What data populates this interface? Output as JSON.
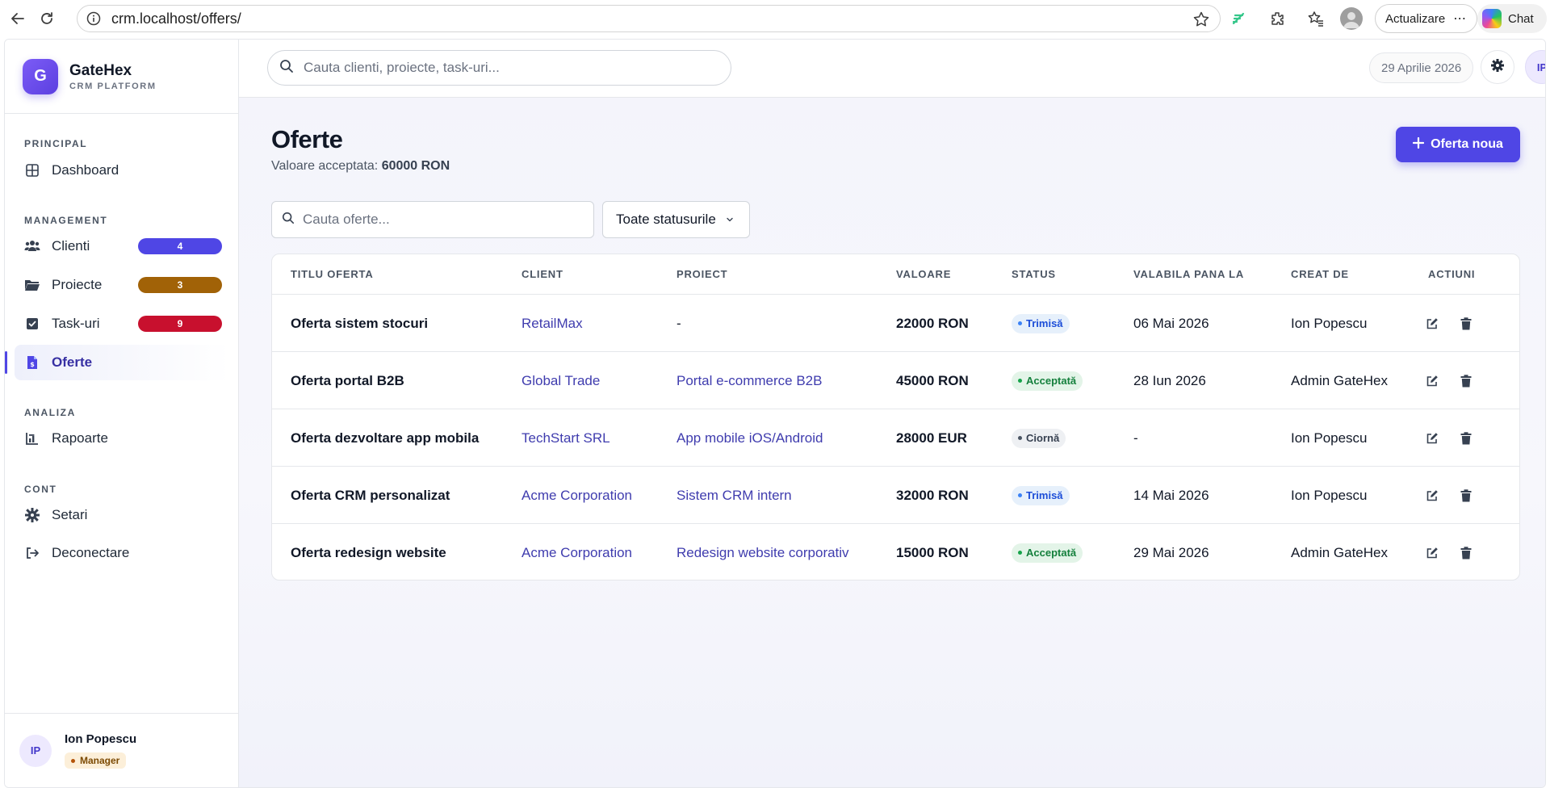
{
  "browser": {
    "url": "crm.localhost/offers/",
    "update_label": "Actualizare",
    "chat_label": "Chat"
  },
  "brand": {
    "logo_letter": "G",
    "name": "GateHex",
    "subtitle": "CRM PLATFORM"
  },
  "sidebar": {
    "sections": [
      {
        "title": "PRINCIPAL",
        "items": [
          {
            "label": "Dashboard",
            "icon": "grid-icon"
          }
        ]
      },
      {
        "title": "MANAGEMENT",
        "items": [
          {
            "label": "Clienti",
            "icon": "users-icon",
            "badge": "4",
            "badge_color": "#4f46e5"
          },
          {
            "label": "Proiecte",
            "icon": "folder-icon",
            "badge": "3",
            "badge_color": "#a16207"
          },
          {
            "label": "Task-uri",
            "icon": "checkbox-icon",
            "badge": "9",
            "badge_color": "#c8102e"
          },
          {
            "label": "Oferte",
            "icon": "invoice-icon",
            "active": true
          }
        ]
      },
      {
        "title": "ANALIZA",
        "items": [
          {
            "label": "Rapoarte",
            "icon": "chart-icon"
          }
        ]
      },
      {
        "title": "CONT",
        "items": [
          {
            "label": "Setari",
            "icon": "gear-icon"
          },
          {
            "label": "Deconectare",
            "icon": "logout-icon"
          }
        ]
      }
    ],
    "user": {
      "initials": "IP",
      "name": "Ion Popescu",
      "role": "Manager"
    }
  },
  "topbar": {
    "search_placeholder": "Cauta clienti, proiecte, task-uri...",
    "date": "29 Aprilie 2026",
    "avatar_initials": "IP"
  },
  "page": {
    "title": "Oferte",
    "accepted_label": "Valoare acceptata:",
    "accepted_value": "60000 RON",
    "new_button": "Oferta noua",
    "filter_placeholder": "Cauta oferte...",
    "status_filter": "Toate statusurile"
  },
  "table": {
    "columns": [
      "TITLU OFERTA",
      "CLIENT",
      "PROIECT",
      "VALOARE",
      "STATUS",
      "VALABILA PANA LA",
      "CREAT DE",
      "ACTIUNI"
    ],
    "rows": [
      {
        "title": "Oferta sistem stocuri",
        "client": "RetailMax",
        "project": "-",
        "value": "22000 RON",
        "status": "Trimisă",
        "status_kind": "sent",
        "valid_until": "06 Mai 2026",
        "created_by": "Ion Popescu"
      },
      {
        "title": "Oferta portal B2B",
        "client": "Global Trade",
        "project": "Portal e-commerce B2B",
        "value": "45000 RON",
        "status": "Acceptată",
        "status_kind": "accepted",
        "valid_until": "28 Iun 2026",
        "created_by": "Admin GateHex"
      },
      {
        "title": "Oferta dezvoltare app mobila",
        "client": "TechStart SRL",
        "project": "App mobile iOS/Android",
        "value": "28000 EUR",
        "status": "Ciornă",
        "status_kind": "draft",
        "valid_until": "-",
        "created_by": "Ion Popescu"
      },
      {
        "title": "Oferta CRM personalizat",
        "client": "Acme Corporation",
        "project": "Sistem CRM intern",
        "value": "32000 RON",
        "status": "Trimisă",
        "status_kind": "sent",
        "valid_until": "14 Mai 2026",
        "created_by": "Ion Popescu"
      },
      {
        "title": "Oferta redesign website",
        "client": "Acme Corporation",
        "project": "Redesign website corporativ",
        "value": "15000 RON",
        "status": "Acceptată",
        "status_kind": "accepted",
        "valid_until": "29 Mai 2026",
        "created_by": "Admin GateHex"
      }
    ]
  }
}
